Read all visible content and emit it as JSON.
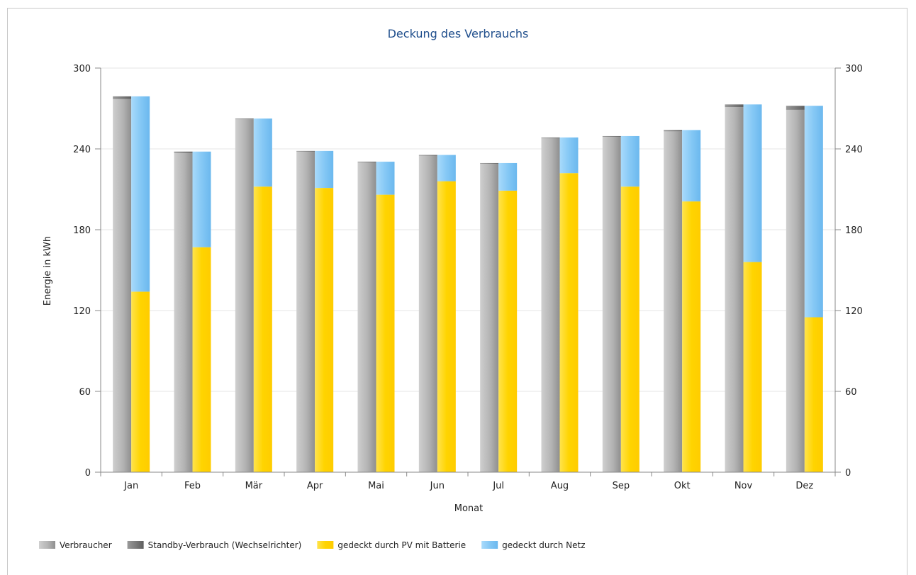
{
  "chart_data": {
    "type": "bar",
    "title": "Deckung des Verbrauchs",
    "xlabel": "Monat",
    "ylabel": "Energie in kWh",
    "ylim": [
      0,
      300
    ],
    "yticks": [
      0,
      60,
      120,
      180,
      240,
      300
    ],
    "grid": true,
    "legend_position": "bottom-left",
    "categories": [
      "Jan",
      "Feb",
      "Mär",
      "Apr",
      "Mai",
      "Jun",
      "Jul",
      "Aug",
      "Sep",
      "Okt",
      "Nov",
      "Dez"
    ],
    "series": [
      {
        "name": "Verbraucher",
        "stack": "Verbrauch",
        "color": "#b0b0b0",
        "values": [
          277,
          237,
          262,
          238,
          230,
          235,
          229,
          248,
          249,
          253,
          271,
          269
        ]
      },
      {
        "name": "Standby-Verbrauch (Wechselrichter)",
        "stack": "Verbrauch",
        "color": "#7a7a7a",
        "values": [
          2,
          1,
          0.5,
          0.5,
          0.5,
          0.5,
          0.5,
          0.5,
          0.5,
          1,
          2,
          3
        ]
      },
      {
        "name": "gedeckt durch PV mit Batterie",
        "stack": "Deckung",
        "color": "#ffd400",
        "values": [
          134,
          167,
          212,
          211,
          206,
          216,
          209,
          222,
          212,
          201,
          156,
          115
        ]
      },
      {
        "name": "gedeckt durch Netz",
        "stack": "Deckung",
        "color": "#85c8f5",
        "values": [
          145,
          71,
          50.5,
          27.5,
          24.5,
          19.5,
          20.5,
          26.5,
          37.5,
          53,
          117,
          157
        ]
      }
    ]
  }
}
